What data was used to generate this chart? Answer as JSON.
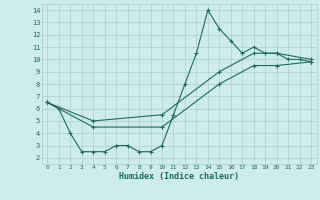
{
  "xlabel": "Humidex (Indice chaleur)",
  "bg_color": "#ceecea",
  "line_color": "#1a6b62",
  "grid_color": "#aecece",
  "xlim": [
    -0.5,
    23.5
  ],
  "ylim": [
    1.5,
    14.5
  ],
  "xticks": [
    0,
    1,
    2,
    3,
    4,
    5,
    6,
    7,
    8,
    9,
    10,
    11,
    12,
    13,
    14,
    15,
    16,
    17,
    18,
    19,
    20,
    21,
    22,
    23
  ],
  "yticks": [
    2,
    3,
    4,
    5,
    6,
    7,
    8,
    9,
    10,
    11,
    12,
    13,
    14
  ],
  "series1_x": [
    0,
    1,
    2,
    3,
    4,
    5,
    6,
    7,
    8,
    9,
    10,
    11,
    12,
    13,
    14,
    15,
    16,
    17,
    18,
    19,
    20,
    21,
    22,
    23
  ],
  "series1_y": [
    6.5,
    6.0,
    4.0,
    2.5,
    2.5,
    2.5,
    3.0,
    3.0,
    2.5,
    2.5,
    3.0,
    5.5,
    8.0,
    10.5,
    14.0,
    12.5,
    11.5,
    10.5,
    11.0,
    10.5,
    10.5,
    10.0,
    10.0,
    9.8
  ],
  "series2_x": [
    0,
    4,
    10,
    15,
    18,
    20,
    23
  ],
  "series2_y": [
    6.5,
    5.0,
    5.5,
    9.0,
    10.5,
    10.5,
    10.0
  ],
  "series3_x": [
    0,
    4,
    10,
    15,
    18,
    20,
    23
  ],
  "series3_y": [
    6.5,
    4.5,
    4.5,
    8.0,
    9.5,
    9.5,
    9.8
  ]
}
